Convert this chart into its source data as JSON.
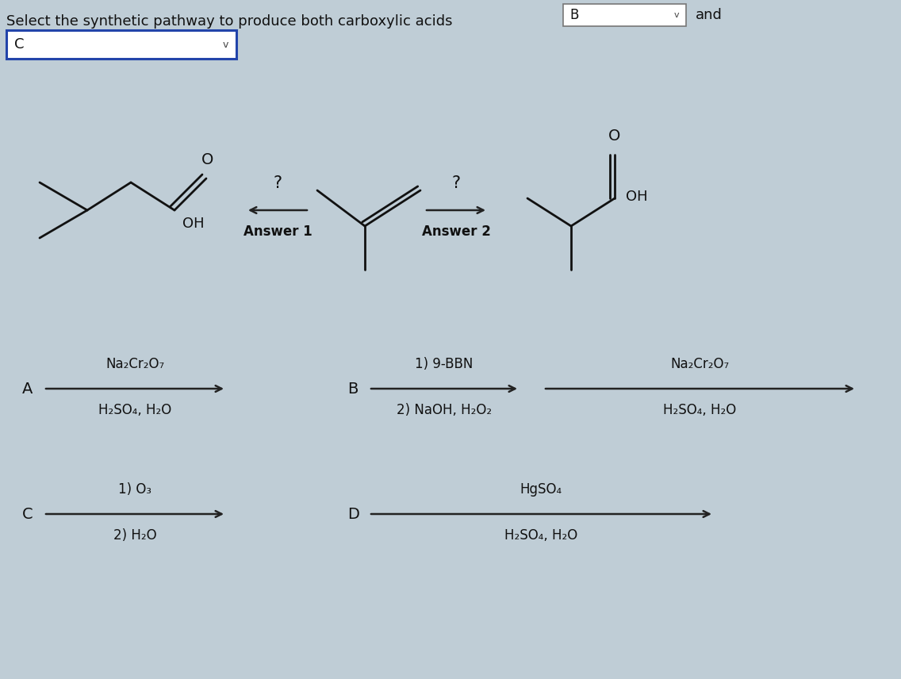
{
  "bg_color": "#bfcdd6",
  "title_text": "Select the synthetic pathway to produce both carboxylic acids",
  "title_fontsize": 13,
  "box1_label": "B",
  "box2_label": "and",
  "dropdown1_label": "C",
  "answer1_label": "Answer 1",
  "answer2_label": "Answer 2",
  "reagent_A_line1": "Na₂Cr₂O₇",
  "reagent_A_line2": "H₂SO₄, H₂O",
  "reagent_B_line1": "1) 9-BBN",
  "reagent_B_line2": "2) NaOH, H₂O₂",
  "reagent_B2_line1": "Na₂Cr₂O₇",
  "reagent_B2_line2": "H₂SO₄, H₂O",
  "reagent_C_line1": "1) O₃",
  "reagent_C_line2": "2) H₂O",
  "reagent_D_line1": "HgSO₄",
  "reagent_D_line2": "H₂SO₄, H₂O",
  "label_A": "A",
  "label_B": "B",
  "label_C": "C",
  "label_D": "D",
  "text_color": "#111111",
  "arrow_color": "#222222",
  "box_color_blue": "#2244aa",
  "box_color_gray": "#888888",
  "molecule_color": "#111111",
  "mol_lw": 2.0
}
